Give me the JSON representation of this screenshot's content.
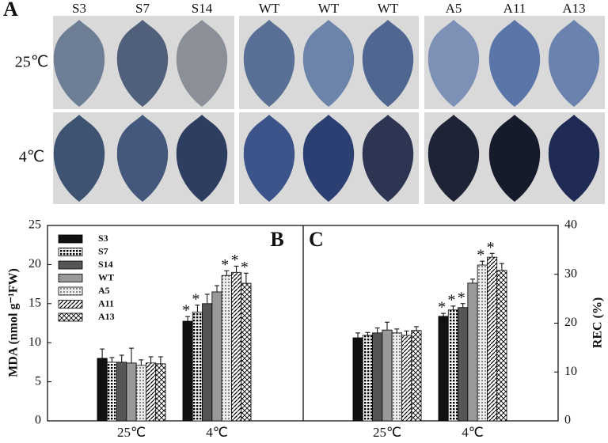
{
  "panel_a": {
    "label": "A",
    "columns": [
      "S3",
      "S7",
      "S14",
      "WT",
      "WT",
      "WT",
      "A5",
      "A11",
      "A13"
    ],
    "rows": [
      "25℃",
      "4℃"
    ]
  },
  "chart_data": [
    {
      "type": "bar",
      "panel": "B",
      "axis_side": "left",
      "y_label": "MDA (nmol g⁻¹FW)",
      "legend": true,
      "categories": [
        "25℃",
        "4℃"
      ],
      "ylim": [
        0,
        25
      ],
      "yticks": [
        0,
        5,
        10,
        15,
        20,
        25
      ],
      "series": [
        {
          "name": "S3",
          "color": "#111111",
          "pattern": "solid",
          "values": [
            8.0,
            12.75
          ],
          "errors": [
            1.2,
            0.6
          ],
          "markers": [
            null,
            "*"
          ]
        },
        {
          "name": "S7",
          "color": "#222222",
          "pattern": "dots",
          "values": [
            7.5,
            13.9
          ],
          "errors": [
            0.6,
            0.9
          ],
          "markers": [
            null,
            "*"
          ]
        },
        {
          "name": "S14",
          "color": "#555555",
          "pattern": "solid",
          "values": [
            7.5,
            15.0
          ],
          "errors": [
            0.9,
            1.2
          ],
          "markers": [
            null,
            null
          ]
        },
        {
          "name": "WT",
          "color": "#999999",
          "pattern": "solid",
          "values": [
            7.4,
            16.5
          ],
          "errors": [
            1.9,
            0.8
          ],
          "markers": [
            null,
            null
          ]
        },
        {
          "name": "A5",
          "color": "#bbbbbb",
          "pattern": "dots",
          "values": [
            7.1,
            18.6
          ],
          "errors": [
            0.7,
            0.6
          ],
          "markers": [
            null,
            "*"
          ]
        },
        {
          "name": "A11",
          "color": "#ffffff",
          "pattern": "diagonal",
          "values": [
            7.4,
            19.0
          ],
          "errors": [
            0.8,
            0.8
          ],
          "markers": [
            null,
            "*"
          ]
        },
        {
          "name": "A13",
          "color": "#ffffff",
          "pattern": "cross",
          "values": [
            7.3,
            17.6
          ],
          "errors": [
            0.9,
            1.3
          ],
          "markers": [
            null,
            "*"
          ]
        }
      ]
    },
    {
      "type": "bar",
      "panel": "C",
      "axis_side": "right",
      "y_label": "REC (%)",
      "legend": false,
      "categories": [
        "25℃",
        "4℃"
      ],
      "ylim": [
        0,
        40
      ],
      "yticks": [
        0,
        10,
        20,
        30,
        40
      ],
      "series": [
        {
          "name": "S3",
          "color": "#111111",
          "pattern": "solid",
          "values": [
            17.0,
            21.4
          ],
          "errors": [
            1.0,
            0.6
          ],
          "markers": [
            null,
            "*"
          ]
        },
        {
          "name": "S7",
          "color": "#222222",
          "pattern": "dots",
          "values": [
            17.5,
            22.7
          ],
          "errors": [
            0.6,
            0.8
          ],
          "markers": [
            null,
            "*"
          ]
        },
        {
          "name": "S14",
          "color": "#555555",
          "pattern": "solid",
          "values": [
            18.0,
            23.2
          ],
          "errors": [
            1.0,
            0.8
          ],
          "markers": [
            null,
            "*"
          ]
        },
        {
          "name": "WT",
          "color": "#999999",
          "pattern": "solid",
          "values": [
            18.6,
            28.2
          ],
          "errors": [
            1.6,
            0.8
          ],
          "markers": [
            null,
            null
          ]
        },
        {
          "name": "A5",
          "color": "#bbbbbb",
          "pattern": "dots",
          "values": [
            18.0,
            31.9
          ],
          "errors": [
            0.8,
            0.8
          ],
          "markers": [
            null,
            "*"
          ]
        },
        {
          "name": "A11",
          "color": "#ffffff",
          "pattern": "diagonal",
          "values": [
            17.5,
            33.5
          ],
          "errors": [
            0.9,
            0.8
          ],
          "markers": [
            null,
            "*"
          ]
        },
        {
          "name": "A13",
          "color": "#ffffff",
          "pattern": "cross",
          "values": [
            18.5,
            30.8
          ],
          "errors": [
            0.8,
            1.4
          ],
          "markers": [
            null,
            null
          ]
        }
      ]
    }
  ]
}
